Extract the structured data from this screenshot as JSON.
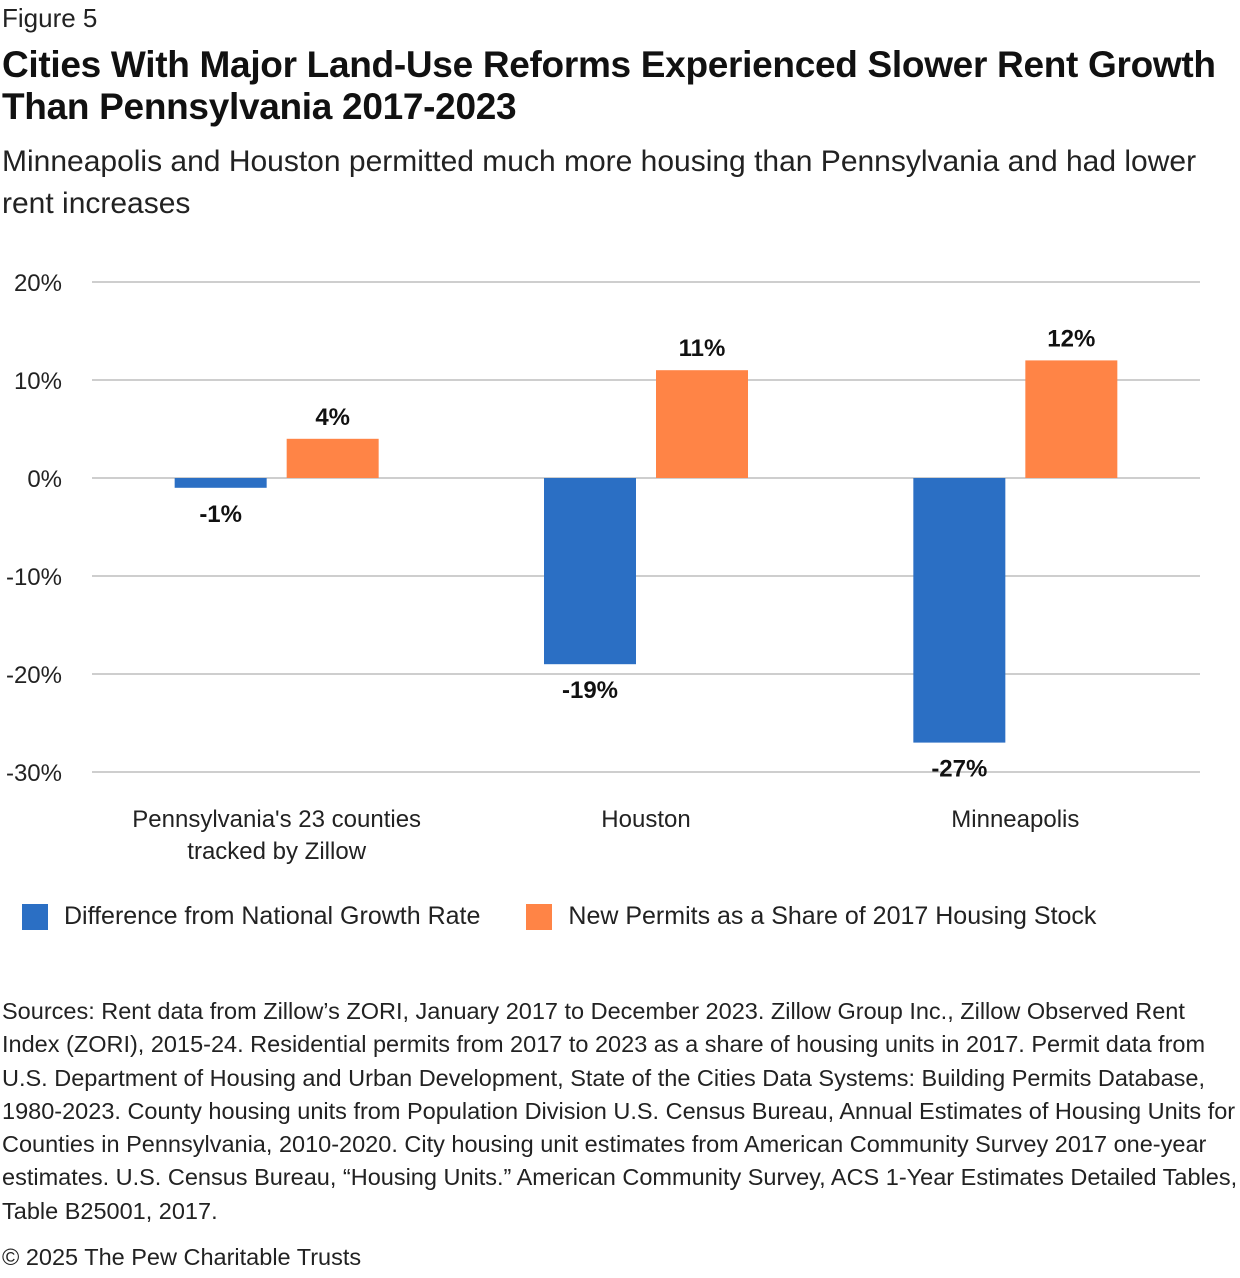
{
  "figure_label": "Figure 5",
  "title": "Cities With Major Land-Use Reforms Experienced Slower Rent Growth Than Pennsylvania 2017-2023",
  "subtitle": "Minneapolis and Houston permitted much more housing than Pennsylvania and had lower rent increases",
  "chart_data": {
    "type": "bar",
    "categories": [
      [
        "Pennsylvania's 23 counties",
        "tracked by Zillow"
      ],
      [
        "Houston"
      ],
      [
        "Minneapolis"
      ]
    ],
    "series": [
      {
        "name": "Difference from National Growth Rate",
        "color": "#2b6fc4",
        "values": [
          -1,
          -19,
          -27
        ],
        "labels": [
          "-1%",
          "-19%",
          "-27%"
        ]
      },
      {
        "name": "New Permits as a Share of 2017 Housing Stock",
        "color": "#ff8446",
        "values": [
          4,
          11,
          12
        ],
        "labels": [
          "4%",
          "11%",
          "12%"
        ]
      }
    ],
    "ylim": [
      -30,
      20
    ],
    "yticks": [
      20,
      10,
      0,
      -10,
      -20,
      -30
    ],
    "ytick_labels": [
      "20%",
      "10%",
      "0%",
      "-10%",
      "-20%",
      "-30%"
    ],
    "grid": true,
    "legend_position": "bottom-left",
    "xlabel": "",
    "ylabel": ""
  },
  "sources": "Sources: Rent data from Zillow’s ZORI, January 2017 to December 2023. Zillow Group Inc., Zillow Observed Rent Index (ZORI), 2015-24. Residential permits from 2017 to 2023 as a share of housing units in 2017. Permit data from U.S. Department of Housing and Urban Development, State of the Cities Data Systems: Building Permits Database, 1980-2023. County housing units from Population Division U.S. Census Bureau, Annual Estimates of Housing Units for Counties in Pennsylvania, 2010-2020. City housing unit estimates from American Community Survey 2017 one-year estimates. U.S. Census Bureau, “Housing Units.” American Community Survey, ACS 1-Year Estimates Detailed Tables, Table B25001, 2017.",
  "copyright": "© 2025 The Pew Charitable Trusts"
}
